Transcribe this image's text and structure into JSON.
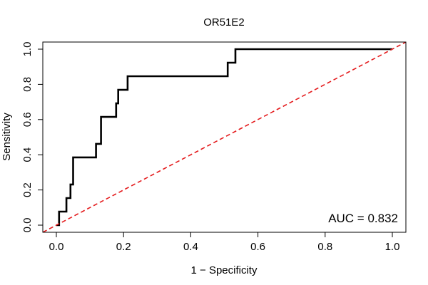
{
  "chart_data": {
    "type": "line",
    "title": "OR51E2",
    "xlabel": "1 − Specificity",
    "ylabel": "Sensitivity",
    "xlim": [
      0.0,
      1.0
    ],
    "ylim": [
      0.0,
      1.0
    ],
    "x_ticks": [
      0.0,
      0.2,
      0.4,
      0.6,
      0.8,
      1.0
    ],
    "x_tick_labels": [
      "0.0",
      "0.2",
      "0.4",
      "0.6",
      "0.8",
      "1.0"
    ],
    "y_ticks": [
      0.0,
      0.2,
      0.4,
      0.6,
      0.8,
      1.0
    ],
    "y_tick_labels": [
      "0.0",
      "0.2",
      "0.4",
      "0.6",
      "0.8",
      "1.0"
    ],
    "grid": false,
    "annotation": "AUC = 0.832",
    "series": [
      {
        "name": "ROC curve",
        "color": "#000000",
        "style": "solid",
        "x": [
          0.0,
          0.008,
          0.008,
          0.03,
          0.03,
          0.042,
          0.042,
          0.05,
          0.05,
          0.118,
          0.118,
          0.133,
          0.133,
          0.178,
          0.178,
          0.184,
          0.184,
          0.202,
          0.202,
          0.212,
          0.212,
          0.51,
          0.51,
          0.533,
          0.533,
          1.0
        ],
        "y": [
          0.0,
          0.0,
          0.077,
          0.077,
          0.154,
          0.154,
          0.231,
          0.231,
          0.385,
          0.385,
          0.462,
          0.462,
          0.615,
          0.615,
          0.692,
          0.692,
          0.769,
          0.769,
          0.769,
          0.769,
          0.846,
          0.846,
          0.923,
          0.923,
          1.0,
          1.0
        ]
      },
      {
        "name": "chance line",
        "color": "#e41a1c",
        "style": "dashed",
        "x": [
          -0.04,
          1.04
        ],
        "y": [
          -0.04,
          1.04
        ]
      }
    ]
  }
}
